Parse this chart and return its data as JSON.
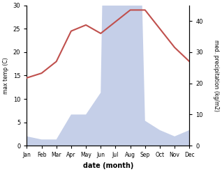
{
  "months": [
    "Jan",
    "Feb",
    "Mar",
    "Apr",
    "May",
    "Jun",
    "Jul",
    "Aug",
    "Sep",
    "Oct",
    "Nov",
    "Dec"
  ],
  "temperature": [
    14.5,
    15.5,
    18.0,
    24.5,
    25.8,
    24.0,
    26.5,
    29.0,
    29.0,
    25.0,
    21.0,
    18.0
  ],
  "precipitation": [
    3,
    2,
    2,
    10,
    10,
    17,
    290,
    200,
    8,
    5,
    3,
    5
  ],
  "temp_color": "#c0504d",
  "precip_fill_color": "#c5cfe8",
  "ylabel_left": "max temp (C)",
  "ylabel_right": "med. precipitation (kg/m2)",
  "xlabel": "date (month)",
  "ylim_left": [
    0,
    30
  ],
  "ylim_right": [
    0,
    45
  ],
  "precip_scale": 10,
  "yticks_left": [
    0,
    5,
    10,
    15,
    20,
    25,
    30
  ],
  "yticks_right": [
    0,
    10,
    20,
    30,
    40
  ],
  "bg_color": "#ffffff",
  "left_axis_color": "#000000",
  "right_axis_color": "#000000"
}
